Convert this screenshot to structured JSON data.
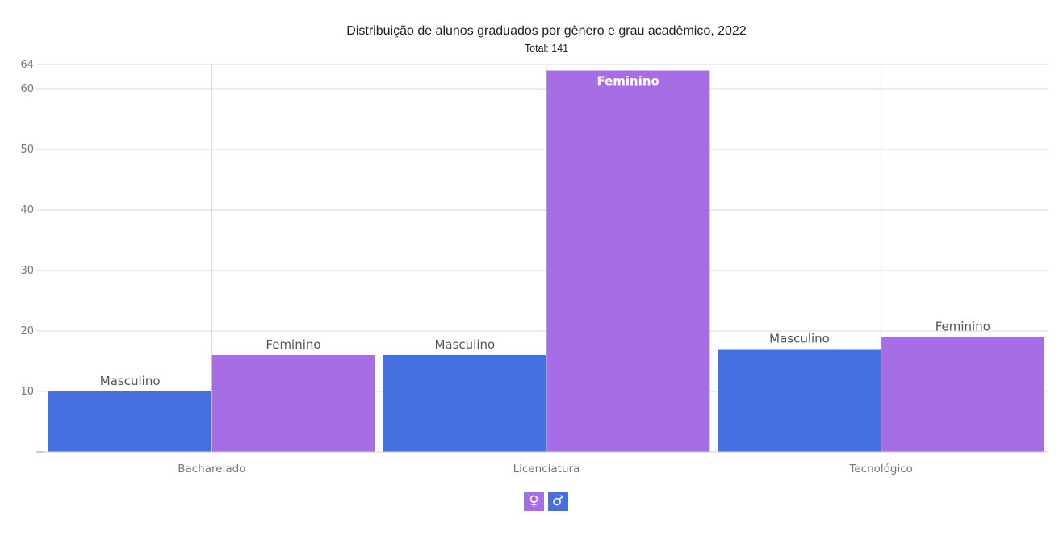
{
  "chart_data": {
    "type": "bar",
    "title": "Distribuição de alunos graduados por gênero e grau acadêmico, 2022",
    "subtitle": "Total: 141",
    "categories": [
      "Bacharelado",
      "Licenciatura",
      "Tecnológico"
    ],
    "series": [
      {
        "name": "Masculino",
        "values": [
          10,
          16,
          17
        ],
        "color": "#4571e0",
        "legend_icon": "♂",
        "legend_icon_name": "male-symbol-icon"
      },
      {
        "name": "Feminino",
        "values": [
          16,
          63,
          19
        ],
        "color": "#a66de5",
        "legend_icon": "♀",
        "legend_icon_name": "female-symbol-icon"
      }
    ],
    "ylim": [
      0,
      64
    ],
    "yticks": [
      10,
      20,
      30,
      40,
      50,
      60,
      64
    ],
    "grid": true,
    "legend_position": "bottom-center",
    "legend_order": [
      "Feminino",
      "Masculino"
    ],
    "xlabel": "",
    "ylabel": ""
  }
}
